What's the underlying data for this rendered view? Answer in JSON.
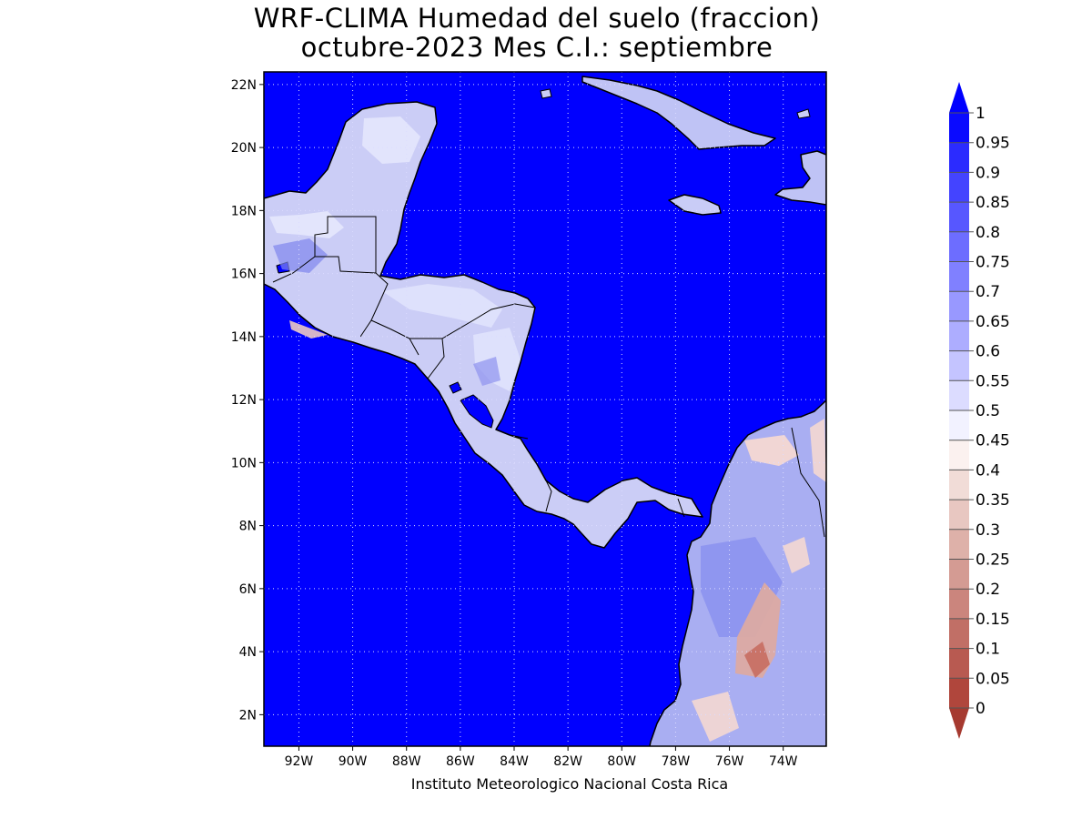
{
  "title_line1": "WRF-CLIMA Humedad del suelo (fraccion)",
  "title_line2": "octubre-2023 Mes C.I.: septiembre",
  "credit": "Instituto Meteorologico Nacional Costa Rica",
  "map": {
    "ocean_color": "#0000ff",
    "lon_range": [
      -93.3,
      -72.4
    ],
    "lat_range": [
      1.0,
      22.4
    ],
    "lon_ticks": [
      "92W",
      "90W",
      "88W",
      "86W",
      "84W",
      "82W",
      "80W",
      "78W",
      "76W",
      "74W"
    ],
    "lon_tick_values": [
      -92,
      -90,
      -88,
      -86,
      -84,
      -82,
      -80,
      -78,
      -76,
      -74
    ],
    "lat_ticks": [
      "22N",
      "20N",
      "18N",
      "16N",
      "14N",
      "12N",
      "10N",
      "8N",
      "6N",
      "4N",
      "2N"
    ],
    "lat_tick_values": [
      22,
      20,
      18,
      16,
      14,
      12,
      10,
      8,
      6,
      4,
      2
    ],
    "grid": true
  },
  "colorbar": {
    "labels": [
      "1",
      "0.95",
      "0.9",
      "0.85",
      "0.8",
      "0.75",
      "0.7",
      "0.65",
      "0.6",
      "0.55",
      "0.5",
      "0.45",
      "0.4",
      "0.35",
      "0.3",
      "0.25",
      "0.2",
      "0.15",
      "0.1",
      "0.05",
      "0"
    ],
    "colors": [
      "#0a0aff",
      "#2b2bff",
      "#4444ff",
      "#5757ff",
      "#6d6dff",
      "#8080ff",
      "#9898ff",
      "#adadff",
      "#c4c4ff",
      "#dcdcff",
      "#f2f2ff",
      "#fbf1ef",
      "#f1dcd7",
      "#e8c7c1",
      "#deb1a9",
      "#d49b93",
      "#cb857d",
      "#c16f66",
      "#b85a51",
      "#b0463c"
    ],
    "over_color": "#0000ff",
    "under_color": "#a63a30"
  }
}
